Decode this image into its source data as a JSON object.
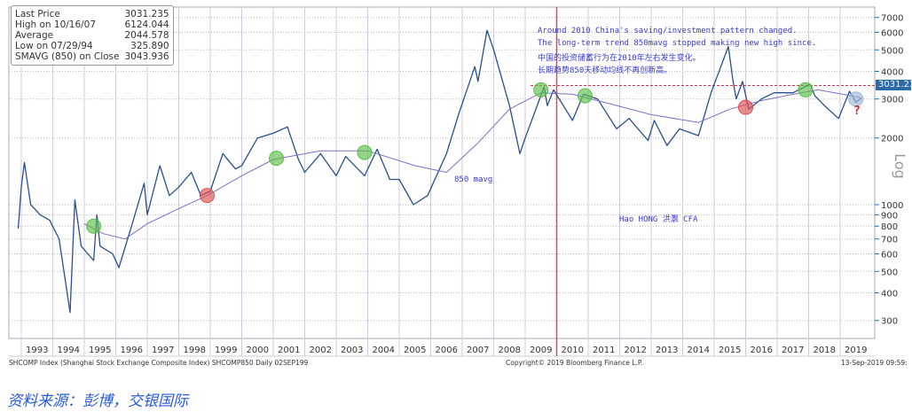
{
  "legend": {
    "rows": [
      {
        "label": "Last Price",
        "value": "3031.235"
      },
      {
        "label": "High on 10/16/07",
        "value": "6124.044"
      },
      {
        "label": "Average",
        "value": "2044.578"
      },
      {
        "label": "Low on 07/29/94",
        "value": "325.890"
      },
      {
        "label": "SMAVG (850)  on Close",
        "value": "3043.936"
      }
    ]
  },
  "annotations": {
    "en1": "Around 2010 China's saving/investment pattern changed.",
    "en2": "The long-term trend 850mavg stopped making new high since.",
    "cn1": "中国的投资储蓄行为在2010年左右发生变化。",
    "cn2": "长期趋势850天移动均线不再创新高。",
    "mavg": "850 mavg",
    "author": "Hao HONG 洪灏 CFA",
    "question": "?"
  },
  "last_price_tag": "3031.235",
  "axis_scale_label": "Log",
  "footer": {
    "left": "SHCOMP Index (Shanghai Stock Exchange Composite Index) SHCOMP850  Daily 02SEP199",
    "center": "Copyright© 2019 Bloomberg Finance L.P.",
    "right": "13-Sep-2019 09:59:"
  },
  "source": "资料来源：彭博，交银国际",
  "chart_data": {
    "type": "line",
    "yscale": "log",
    "ylim": [
      220,
      7600
    ],
    "xlim": [
      1992.7,
      2020.0
    ],
    "yticks": [
      300,
      400,
      500,
      600,
      700,
      800,
      900,
      1000,
      2000,
      3000,
      4000,
      5000,
      6000,
      7000
    ],
    "ytick_labels": [
      "300",
      "400",
      "500",
      "600",
      "700",
      "800",
      "900",
      "1000",
      "2000",
      "3000",
      "4000",
      "5000",
      "6000",
      "7000"
    ],
    "xtick_labels": [
      "1993",
      "1994",
      "1995",
      "1996",
      "1997",
      "1998",
      "1999",
      "2000",
      "2001",
      "2002",
      "2003",
      "2004",
      "2005",
      "2006",
      "2007",
      "2008",
      "2009",
      "2010",
      "2011",
      "2012",
      "2013",
      "2014",
      "2015",
      "2016",
      "2017",
      "2018",
      "2019"
    ],
    "series": [
      {
        "name": "SHCOMP Last Price",
        "color": "#2a4f8a",
        "points": [
          [
            1992.9,
            780
          ],
          [
            1993.0,
            1200
          ],
          [
            1993.1,
            1550
          ],
          [
            1993.3,
            1000
          ],
          [
            1993.6,
            900
          ],
          [
            1993.9,
            850
          ],
          [
            1994.2,
            700
          ],
          [
            1994.55,
            326
          ],
          [
            1994.7,
            1050
          ],
          [
            1994.9,
            650
          ],
          [
            1995.3,
            560
          ],
          [
            1995.4,
            900
          ],
          [
            1995.5,
            650
          ],
          [
            1995.9,
            600
          ],
          [
            1996.1,
            520
          ],
          [
            1996.5,
            800
          ],
          [
            1996.9,
            1250
          ],
          [
            1997.0,
            900
          ],
          [
            1997.4,
            1500
          ],
          [
            1997.7,
            1100
          ],
          [
            1998.0,
            1200
          ],
          [
            1998.4,
            1400
          ],
          [
            1998.7,
            1100
          ],
          [
            1999.0,
            1150
          ],
          [
            1999.4,
            1700
          ],
          [
            1999.8,
            1450
          ],
          [
            2000.0,
            1500
          ],
          [
            2000.5,
            2000
          ],
          [
            2001.0,
            2100
          ],
          [
            2001.45,
            2245
          ],
          [
            2001.8,
            1600
          ],
          [
            2002.0,
            1400
          ],
          [
            2002.5,
            1700
          ],
          [
            2003.0,
            1350
          ],
          [
            2003.3,
            1650
          ],
          [
            2003.9,
            1350
          ],
          [
            2004.3,
            1780
          ],
          [
            2004.7,
            1300
          ],
          [
            2005.0,
            1300
          ],
          [
            2005.45,
            1000
          ],
          [
            2005.9,
            1100
          ],
          [
            2006.5,
            1700
          ],
          [
            2006.9,
            2600
          ],
          [
            2007.4,
            4200
          ],
          [
            2007.5,
            3600
          ],
          [
            2007.79,
            6124
          ],
          [
            2008.0,
            5000
          ],
          [
            2008.5,
            2800
          ],
          [
            2008.83,
            1700
          ],
          [
            2009.0,
            2000
          ],
          [
            2009.6,
            3400
          ],
          [
            2009.7,
            2800
          ],
          [
            2009.9,
            3300
          ],
          [
            2010.5,
            2400
          ],
          [
            2010.85,
            3150
          ],
          [
            2011.3,
            3000
          ],
          [
            2011.9,
            2200
          ],
          [
            2012.3,
            2450
          ],
          [
            2012.9,
            1950
          ],
          [
            2013.1,
            2400
          ],
          [
            2013.5,
            1850
          ],
          [
            2013.9,
            2200
          ],
          [
            2014.5,
            2050
          ],
          [
            2014.9,
            3200
          ],
          [
            2015.45,
            5178
          ],
          [
            2015.6,
            3600
          ],
          [
            2015.7,
            3000
          ],
          [
            2015.9,
            3600
          ],
          [
            2016.1,
            2700
          ],
          [
            2016.5,
            3000
          ],
          [
            2016.9,
            3200
          ],
          [
            2017.5,
            3200
          ],
          [
            2018.05,
            3500
          ],
          [
            2018.2,
            3100
          ],
          [
            2018.5,
            2800
          ],
          [
            2018.95,
            2450
          ],
          [
            2019.3,
            3250
          ],
          [
            2019.5,
            2900
          ],
          [
            2019.67,
            3031
          ]
        ]
      },
      {
        "name": "SMAVG (850)",
        "color": "#7a6fc8",
        "points": [
          [
            1995.0,
            820
          ],
          [
            1995.6,
            740
          ],
          [
            1996.3,
            700
          ],
          [
            1997.0,
            820
          ],
          [
            1998.0,
            960
          ],
          [
            1998.9,
            1100
          ],
          [
            2000.0,
            1350
          ],
          [
            2001.0,
            1600
          ],
          [
            2002.5,
            1750
          ],
          [
            2004.0,
            1750
          ],
          [
            2005.5,
            1500
          ],
          [
            2006.5,
            1400
          ],
          [
            2007.5,
            1900
          ],
          [
            2008.5,
            2700
          ],
          [
            2009.5,
            3200
          ],
          [
            2010.5,
            3150
          ],
          [
            2011.5,
            2900
          ],
          [
            2013.0,
            2550
          ],
          [
            2014.5,
            2350
          ],
          [
            2015.5,
            2700
          ],
          [
            2016.5,
            2950
          ],
          [
            2017.5,
            3150
          ],
          [
            2018.3,
            3300
          ],
          [
            2019.67,
            3044
          ]
        ]
      }
    ],
    "markers": [
      {
        "x": 1995.3,
        "y": 800,
        "color": "#5cbf4a"
      },
      {
        "x": 1998.9,
        "y": 1100,
        "color": "#e05050"
      },
      {
        "x": 2001.1,
        "y": 1620,
        "color": "#5cbf4a"
      },
      {
        "x": 2003.9,
        "y": 1720,
        "color": "#5cbf4a"
      },
      {
        "x": 2009.5,
        "y": 3300,
        "color": "#5cbf4a"
      },
      {
        "x": 2010.9,
        "y": 3100,
        "color": "#5cbf4a"
      },
      {
        "x": 2016.0,
        "y": 2750,
        "color": "#e05050"
      },
      {
        "x": 2017.9,
        "y": 3300,
        "color": "#5cbf4a"
      },
      {
        "x": 2019.5,
        "y": 3000,
        "color": "#a0b8d8"
      }
    ],
    "reference_lines": [
      {
        "type": "horizontal",
        "y": 3450,
        "color": "#d03050",
        "style": "dashed"
      },
      {
        "type": "vertical",
        "x": 2010.0,
        "color": "#d05060"
      }
    ]
  }
}
